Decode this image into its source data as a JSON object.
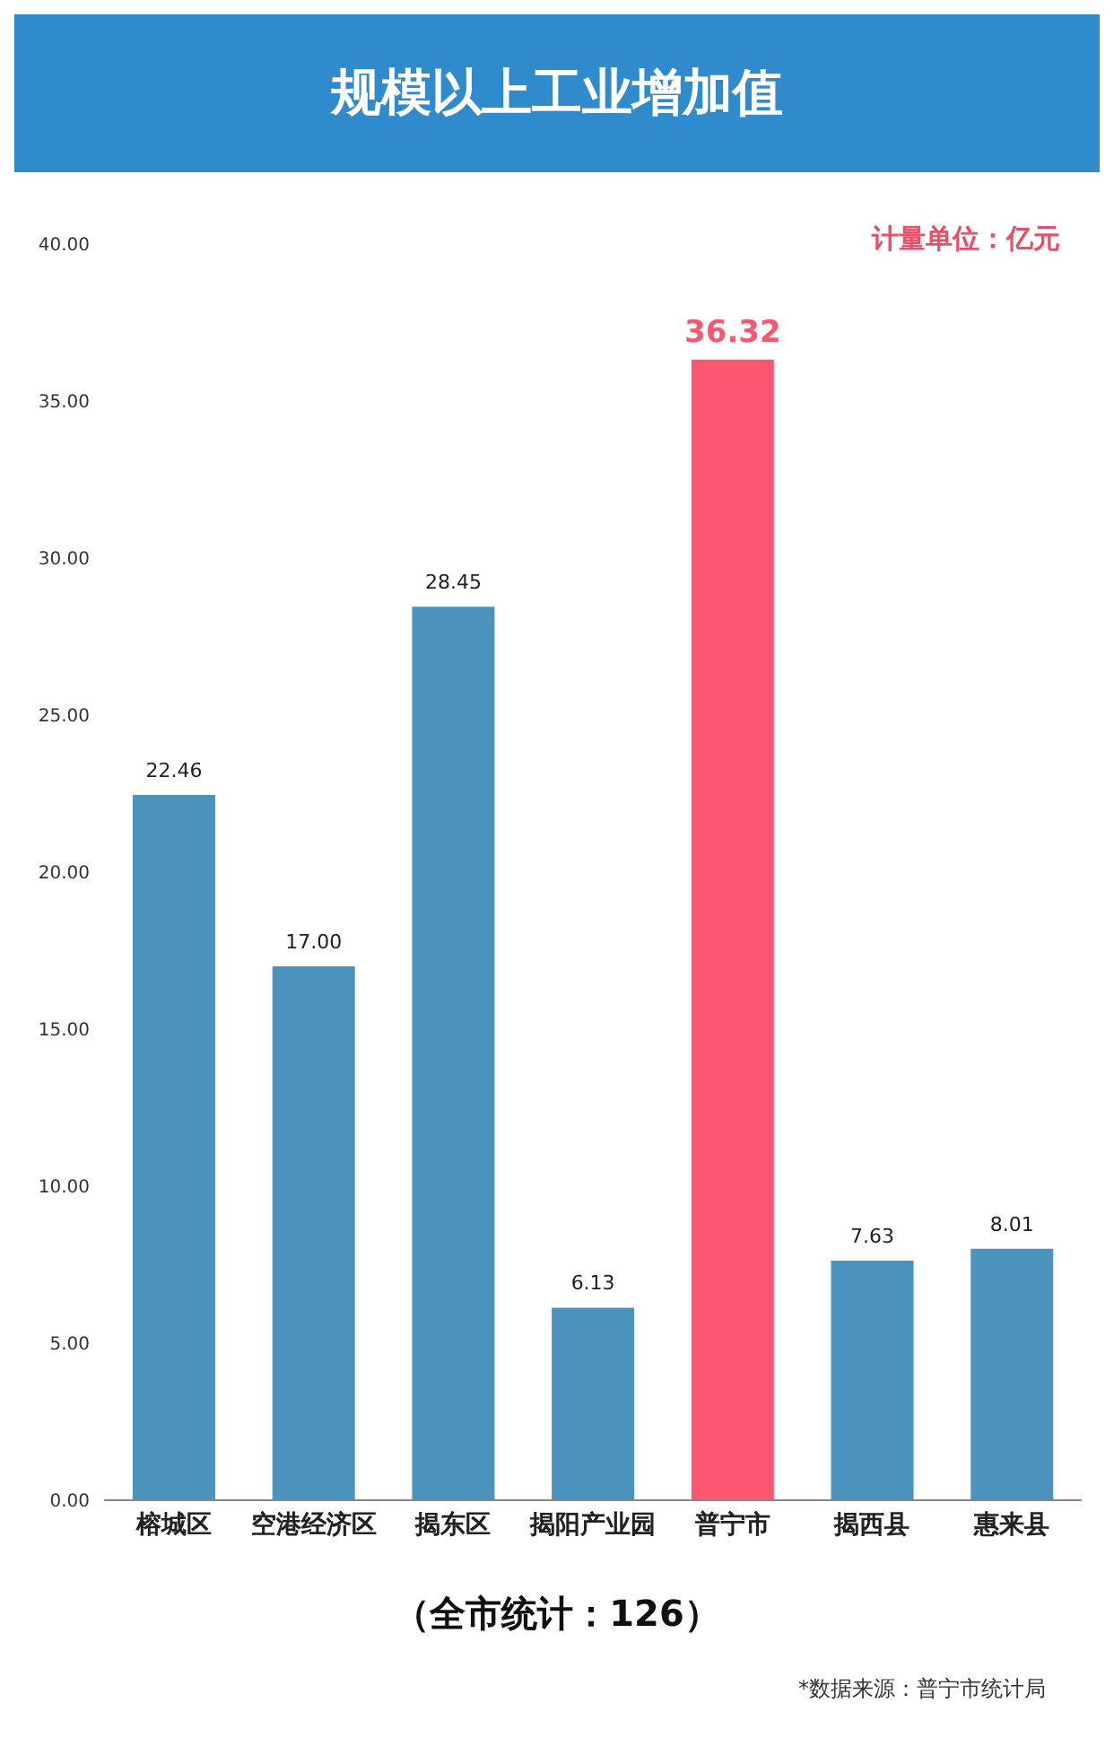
{
  "chart_data": {
    "type": "bar",
    "title": "规模以上工业增加值",
    "categories": [
      "榕城区",
      "空港经济区",
      "揭东区",
      "揭阳产业园",
      "普宁市",
      "揭西县",
      "惠来县"
    ],
    "values": [
      22.46,
      17.0,
      28.45,
      6.13,
      36.32,
      7.63,
      8.01
    ],
    "colors": [
      "#4b93bd",
      "#4b93bd",
      "#4b93bd",
      "#4b93bd",
      "#fd5670",
      "#4b93bd",
      "#4b93bd"
    ],
    "ylim": [
      0,
      40
    ],
    "yticks": [
      {
        "value": 0,
        "label": "0.00"
      },
      {
        "value": 5,
        "label": "5.00"
      },
      {
        "value": 10,
        "label": "10.00"
      },
      {
        "value": 15,
        "label": "15.00"
      },
      {
        "value": 20,
        "label": "20.00"
      },
      {
        "value": 25,
        "label": "25.00"
      },
      {
        "value": 30,
        "label": "30.00"
      },
      {
        "value": 35,
        "label": "35.00"
      },
      {
        "value": 40,
        "label": "40.00"
      }
    ],
    "value_labels": [
      "22.46",
      "17.00",
      "28.45",
      "6.13",
      "36.32",
      "7.63",
      "8.01"
    ],
    "grid": false,
    "legend": false,
    "annotations": [
      "计量单位：亿元",
      "（全市统计：126）",
      "*数据来源：普宁市统计局"
    ]
  }
}
